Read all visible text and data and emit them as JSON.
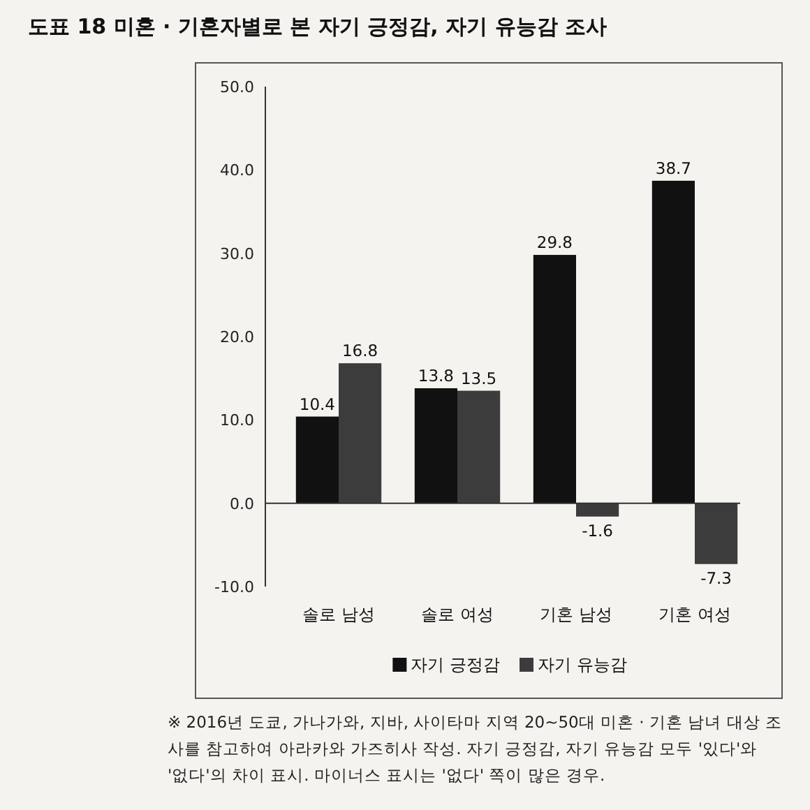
{
  "chart_data": {
    "type": "bar",
    "title": "도표 18 미혼 · 기혼자별로 본 자기 긍정감, 자기 유능감 조사",
    "categories": [
      "솔로 남성",
      "솔로 여성",
      "기혼 남성",
      "기혼 여성"
    ],
    "series": [
      {
        "name": "자기 긍정감",
        "color": "#111111",
        "values": [
          10.4,
          13.8,
          29.8,
          38.7
        ]
      },
      {
        "name": "자기 유능감",
        "color": "#3c3c3c",
        "values": [
          16.8,
          13.5,
          -1.6,
          -7.3
        ]
      }
    ],
    "ylim": [
      -10,
      50
    ],
    "yticks": [
      {
        "value": -10,
        "label": "-10.0"
      },
      {
        "value": 0,
        "label": "0.0"
      },
      {
        "value": 10,
        "label": "10.0"
      },
      {
        "value": 20,
        "label": "20.0"
      },
      {
        "value": 30,
        "label": "30.0"
      },
      {
        "value": 40,
        "label": "40.0"
      },
      {
        "value": 50,
        "label": "50.0"
      }
    ],
    "data_labels": true,
    "legend": "bottom",
    "annotations": [
      "※ 2016년 도쿄, 가나가와, 지바, 사이타마 지역 20~50대 미혼 · 기혼 남녀 대상 조사를 참고하여 아라카와 가즈히사 작성. 자기 긍정감, 자기 유능감 모두 '있다'와 '없다'의 차이 표시. 마이너스 표시는 '없다' 쪽이 많은 경우."
    ]
  }
}
